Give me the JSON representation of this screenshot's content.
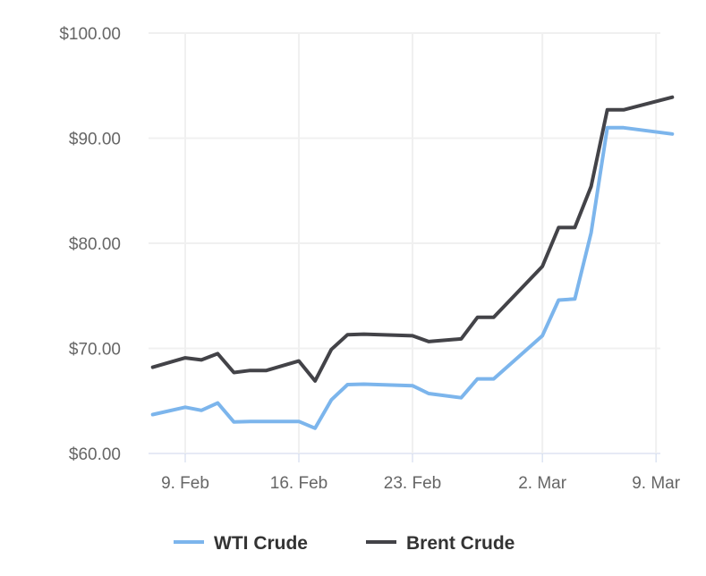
{
  "chart_data": {
    "type": "line",
    "title": "",
    "xlabel": "",
    "ylabel": "",
    "ylim": [
      60,
      100
    ],
    "y_ticks": [
      "$60.00",
      "$70.00",
      "$80.00",
      "$90.00",
      "$100.00"
    ],
    "y_tick_values": [
      60,
      70,
      80,
      90,
      100
    ],
    "x_ticks": [
      "9. Feb",
      "16. Feb",
      "23. Feb",
      "2. Mar",
      "9. Mar"
    ],
    "x_tick_dates": [
      "02-09",
      "02-16",
      "02-23",
      "03-02",
      "03-09"
    ],
    "xlim": [
      "02-07",
      "03-10"
    ],
    "grid": true,
    "legend": "bottom",
    "dates": [
      "02-07",
      "02-09",
      "02-10",
      "02-11",
      "02-12",
      "02-13",
      "02-14",
      "02-16",
      "02-17",
      "02-18",
      "02-19",
      "02-20",
      "02-23",
      "02-24",
      "02-26",
      "02-27",
      "02-28",
      "03-02",
      "03-03",
      "03-04",
      "03-05",
      "03-06",
      "03-07",
      "03-10"
    ],
    "series": [
      {
        "name": "WTI Crude",
        "color": "#7cb5ec",
        "values": [
          63.7,
          64.4,
          64.1,
          64.8,
          63.0,
          63.05,
          63.05,
          63.05,
          62.4,
          65.1,
          66.55,
          66.6,
          66.45,
          65.7,
          65.3,
          67.1,
          67.1,
          71.2,
          74.6,
          74.7,
          81.0,
          91.0,
          91.0,
          90.4
        ]
      },
      {
        "name": "Brent Crude",
        "color": "#434348",
        "values": [
          68.2,
          69.1,
          68.9,
          69.5,
          67.7,
          67.9,
          67.9,
          68.8,
          66.9,
          69.9,
          71.3,
          71.35,
          71.2,
          70.65,
          70.9,
          72.95,
          72.95,
          77.8,
          81.5,
          81.5,
          85.4,
          92.7,
          92.7,
          93.9
        ]
      }
    ]
  }
}
